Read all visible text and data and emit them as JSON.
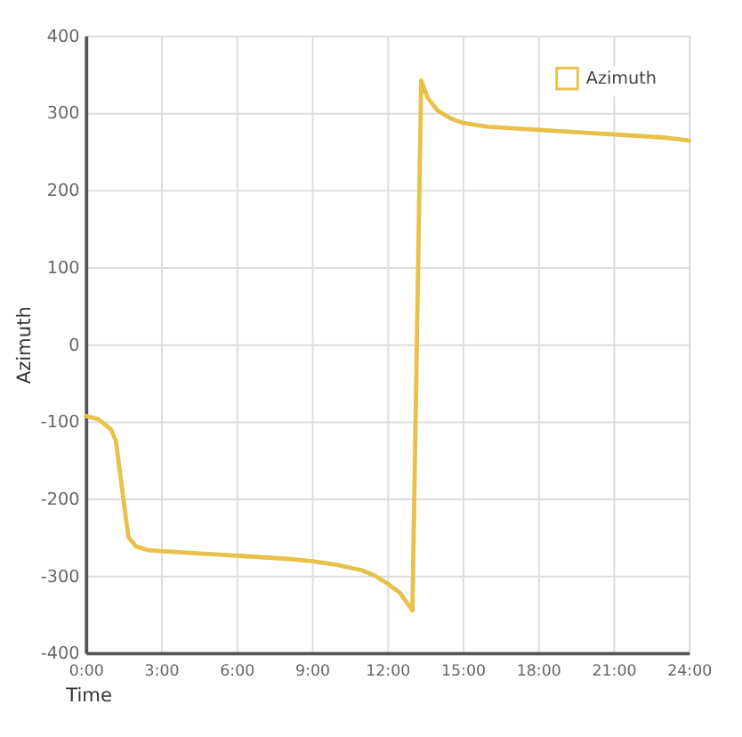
{
  "chart_data": {
    "type": "line",
    "xlabel": "Time",
    "ylabel": "Azimuth",
    "x": [
      0,
      0.5,
      1.0,
      1.2,
      1.5,
      1.7,
      2.0,
      2.5,
      3,
      4,
      5,
      6,
      7,
      8,
      9,
      10,
      11,
      11.5,
      12,
      12.5,
      13.0,
      13.35,
      13.6,
      14,
      14.5,
      15,
      16,
      17,
      18,
      19,
      20,
      21,
      22,
      23,
      24
    ],
    "series": [
      {
        "name": "Azimuth",
        "color": "#e8c14a",
        "values": [
          -93,
          -97,
          -110,
          -125,
          -200,
          -250,
          -262,
          -267,
          -268,
          -270,
          -272,
          -274,
          -276,
          -278,
          -281,
          -286,
          -293,
          -300,
          -310,
          -322,
          -345,
          342,
          320,
          303,
          293,
          287,
          282,
          280,
          278,
          276,
          274,
          272,
          270,
          268,
          264
        ]
      }
    ],
    "xlim": [
      0,
      24
    ],
    "xticks": [
      {
        "value": 0,
        "label": "0:00"
      },
      {
        "value": 3,
        "label": "3:00"
      },
      {
        "value": 6,
        "label": "6:00"
      },
      {
        "value": 9,
        "label": "9:00"
      },
      {
        "value": 12,
        "label": "12:00"
      },
      {
        "value": 15,
        "label": "15:00"
      },
      {
        "value": 18,
        "label": "18:00"
      },
      {
        "value": 21,
        "label": "21:00"
      },
      {
        "value": 24,
        "label": "24:00"
      }
    ],
    "ylim": [
      -400,
      400
    ],
    "yticks": [
      -400,
      -300,
      -200,
      -100,
      0,
      100,
      200,
      300,
      400
    ],
    "grid": true,
    "legend": "top right",
    "marker": "none",
    "line_style": "solid"
  }
}
